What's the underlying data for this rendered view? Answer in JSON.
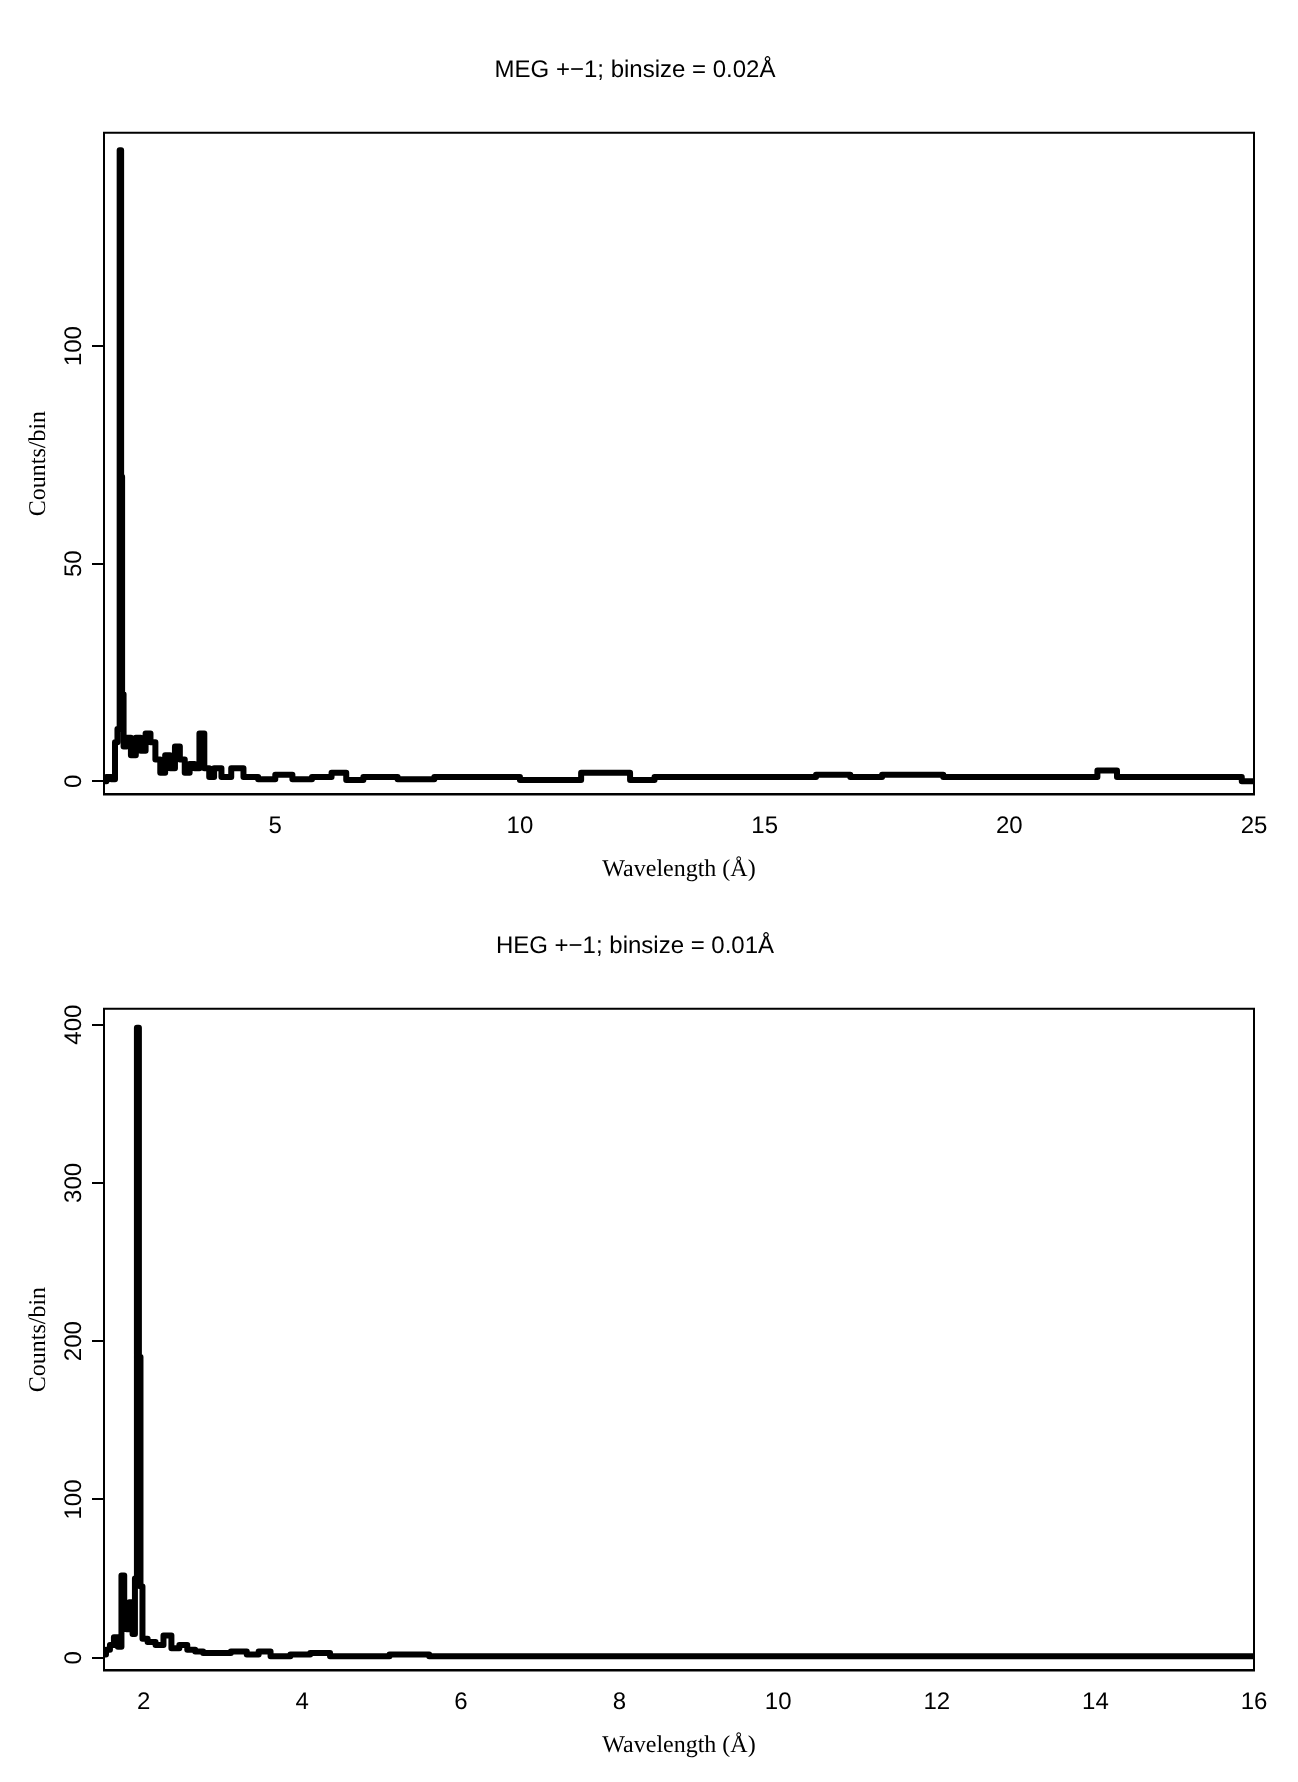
{
  "chart_data": [
    {
      "type": "step",
      "title": "MEG +−1; binsize = 0.02Å",
      "xlabel": "Wavelength (Å)",
      "ylabel": "Counts/bin",
      "color": "#000000",
      "xlim": [
        1.5,
        25
      ],
      "ylim": [
        -3,
        149
      ],
      "xticks": [
        5,
        10,
        15,
        20,
        25
      ],
      "yticks": [
        0,
        50,
        100
      ],
      "grid": false,
      "legend": false,
      "x": [
        1.5,
        1.6,
        1.7,
        1.75,
        1.8,
        1.84,
        1.86,
        1.88,
        1.92,
        2.0,
        2.1,
        2.2,
        2.3,
        2.4,
        2.5,
        2.6,
        2.7,
        2.8,
        2.9,
        3.0,
        3.1,
        3.2,
        3.3,
        3.4,
        3.5,
        3.6,
        3.7,
        3.8,
        4.0,
        4.2,
        4.5,
        4.8,
        5.2,
        5.5,
        6.0,
        6.3,
        6.6,
        7.0,
        8.0,
        8.5,
        9.5,
        10.5,
        12.0,
        12.5,
        13.0,
        14.5,
        15.6,
        16.5,
        17.0,
        17.8,
        19.5,
        21.5,
        22.1,
        22.3,
        23.5,
        24.5,
        25
      ],
      "values": [
        0,
        1,
        0.5,
        9,
        12,
        145,
        70,
        20,
        8,
        10,
        6,
        10,
        7,
        11,
        9,
        5,
        2,
        6,
        3,
        8,
        5,
        2,
        4,
        3,
        11,
        3,
        1,
        3,
        1,
        3,
        1,
        0.5,
        1.5,
        0.5,
        1,
        2,
        0.3,
        1,
        0.5,
        1,
        1,
        0.3,
        2,
        0.3,
        1,
        1,
        1,
        1.5,
        1,
        1.5,
        1,
        1,
        2.5,
        1,
        1,
        1,
        0
      ]
    },
    {
      "type": "step",
      "title": "HEG +−1; binsize = 0.01Å",
      "xlabel": "Wavelength (Å)",
      "ylabel": "Counts/bin",
      "color": "#000000",
      "xlim": [
        1.5,
        16
      ],
      "ylim": [
        -8,
        410
      ],
      "xticks": [
        2,
        4,
        6,
        8,
        10,
        12,
        14,
        16
      ],
      "yticks": [
        0,
        100,
        200,
        300,
        400
      ],
      "grid": false,
      "legend": false,
      "x": [
        1.5,
        1.55,
        1.6,
        1.65,
        1.7,
        1.74,
        1.77,
        1.8,
        1.84,
        1.88,
        1.9,
        1.93,
        1.95,
        1.97,
        2.0,
        2.1,
        2.2,
        2.3,
        2.4,
        2.5,
        2.6,
        2.7,
        2.8,
        3.0,
        3.2,
        3.4,
        3.5,
        3.7,
        4.0,
        4.2,
        4.5,
        5.0,
        5.2,
        6.0,
        7,
        8,
        10,
        12,
        14,
        16
      ],
      "values": [
        2,
        5,
        8,
        13,
        7,
        52,
        25,
        18,
        35,
        15,
        50,
        398,
        190,
        45,
        12,
        10,
        8,
        14,
        6,
        8,
        5,
        4,
        3,
        3,
        4,
        2,
        4,
        1,
        2,
        3,
        1,
        1,
        2,
        1,
        1,
        1,
        1,
        1,
        1,
        1
      ]
    }
  ]
}
